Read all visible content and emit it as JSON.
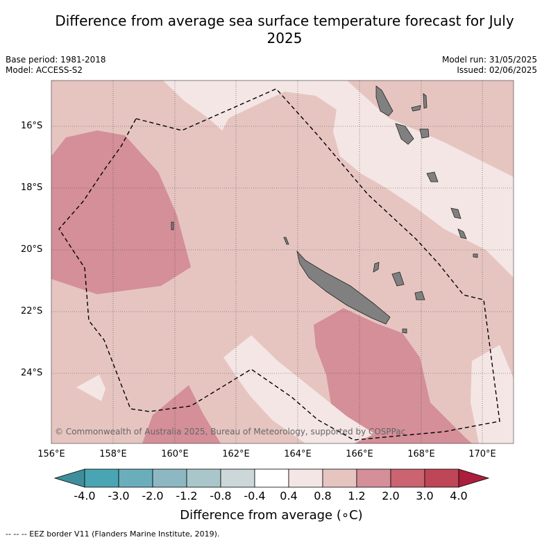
{
  "title": "Difference from average sea surface temperature forecast for July 2025",
  "meta": {
    "base_period": "Base period: 1981-2018",
    "model": "Model: ACCESS-S2",
    "model_run": "Model run: 31/05/2025",
    "issued": "Issued: 02/06/2025"
  },
  "map": {
    "lon_labels": [
      "156°E",
      "158°E",
      "160°E",
      "162°E",
      "164°E",
      "166°E",
      "168°E",
      "170°E"
    ],
    "lat_labels": [
      "16°S",
      "18°S",
      "20°S",
      "22°S",
      "24°S"
    ],
    "copyright": "© Commonwealth of Australia 2025, Bureau of Meteorology, supported by COSPPac",
    "land_color": "#808080",
    "eez_border": "dashed black"
  },
  "colorbar": {
    "ticks": [
      "-4.0",
      "-3.0",
      "-2.0",
      "-1.2",
      "-0.8",
      "-0.4",
      "0.4",
      "0.8",
      "1.2",
      "2.0",
      "3.0",
      "4.0"
    ],
    "colors": [
      "#3f8e9b",
      "#49a5b4",
      "#6aaebc",
      "#8db8c3",
      "#a9c7cb",
      "#cbd7d8",
      "#ffffff",
      "#f4e6e5",
      "#e6c5c1",
      "#d48f98",
      "#cb6370",
      "#bf4656",
      "#ab1e3c"
    ],
    "label": "Difference from average (∘C)"
  },
  "legend": {
    "text": "--  --  -- EEZ border V11 (Flanders Marine Institute, 2019)."
  }
}
